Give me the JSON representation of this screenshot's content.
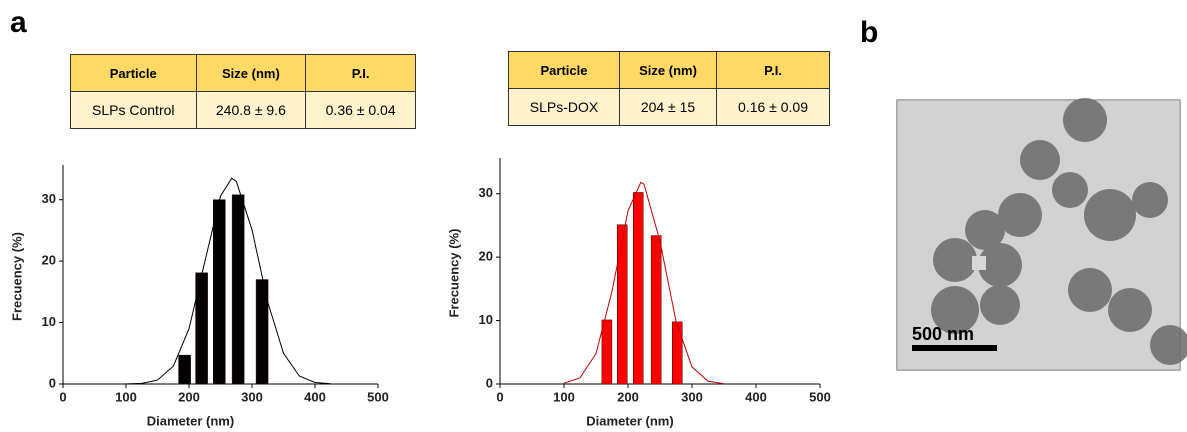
{
  "panel_labels": [
    "a",
    "b"
  ],
  "tables": [
    {
      "header": [
        "Particle",
        "Size (nm)",
        "P.I."
      ],
      "rows": [
        [
          "SLPs Control",
          "240.8 ± 9.6",
          "0.36 ± 0.04"
        ]
      ]
    },
    {
      "header": [
        "Particle",
        "Size (nm)",
        "P.I."
      ],
      "rows": [
        [
          "SLPs-DOX",
          "204 ± 15",
          "0.16 ± 0.09"
        ]
      ]
    }
  ],
  "image": {
    "scale_bar": "500 nm"
  },
  "chart_data": [
    {
      "type": "bar",
      "xlabel": "Diameter (nm)",
      "ylabel": "Frecuency (%)",
      "x": [
        193,
        220,
        248,
        278,
        316
      ],
      "values": [
        4.7,
        18.1,
        30,
        30.8,
        17
      ],
      "color": "#000000",
      "fit": {
        "x": [
          100,
          125,
          150,
          175,
          200,
          225,
          250,
          268,
          275,
          300,
          325,
          350,
          375,
          400,
          425
        ],
        "values": [
          0.01,
          0.1,
          0.64,
          2.9,
          9,
          19.9,
          30.6,
          33.5,
          33,
          25.1,
          13.3,
          5,
          1.3,
          0.24,
          0.03
        ],
        "color": "#000000"
      },
      "xlim": [
        0,
        500
      ],
      "xticks": [
        0,
        100,
        200,
        300,
        400,
        500
      ],
      "ylim": [
        0,
        35
      ],
      "yticks": [
        0,
        10,
        20,
        30
      ]
    },
    {
      "type": "bar",
      "xlabel": "Diameter (nm)",
      "ylabel": "Frecuency (%)",
      "x": [
        167,
        191,
        216,
        244,
        277
      ],
      "values": [
        10.1,
        25.1,
        30.2,
        23.4,
        9.8
      ],
      "color": "#ff0000",
      "fit": {
        "x": [
          100,
          125,
          150,
          175,
          200,
          220,
          225,
          250,
          275,
          300,
          325,
          350
        ],
        "values": [
          0.12,
          0.98,
          4.8,
          14.6,
          27.3,
          31.8,
          31.5,
          22.5,
          9.9,
          2.7,
          0.45,
          0.05
        ],
        "color": "#c00000"
      },
      "xlim": [
        0,
        500
      ],
      "xticks": [
        0,
        100,
        200,
        300,
        400,
        500
      ],
      "ylim": [
        0,
        35
      ],
      "yticks": [
        0,
        10,
        20,
        30
      ]
    }
  ]
}
